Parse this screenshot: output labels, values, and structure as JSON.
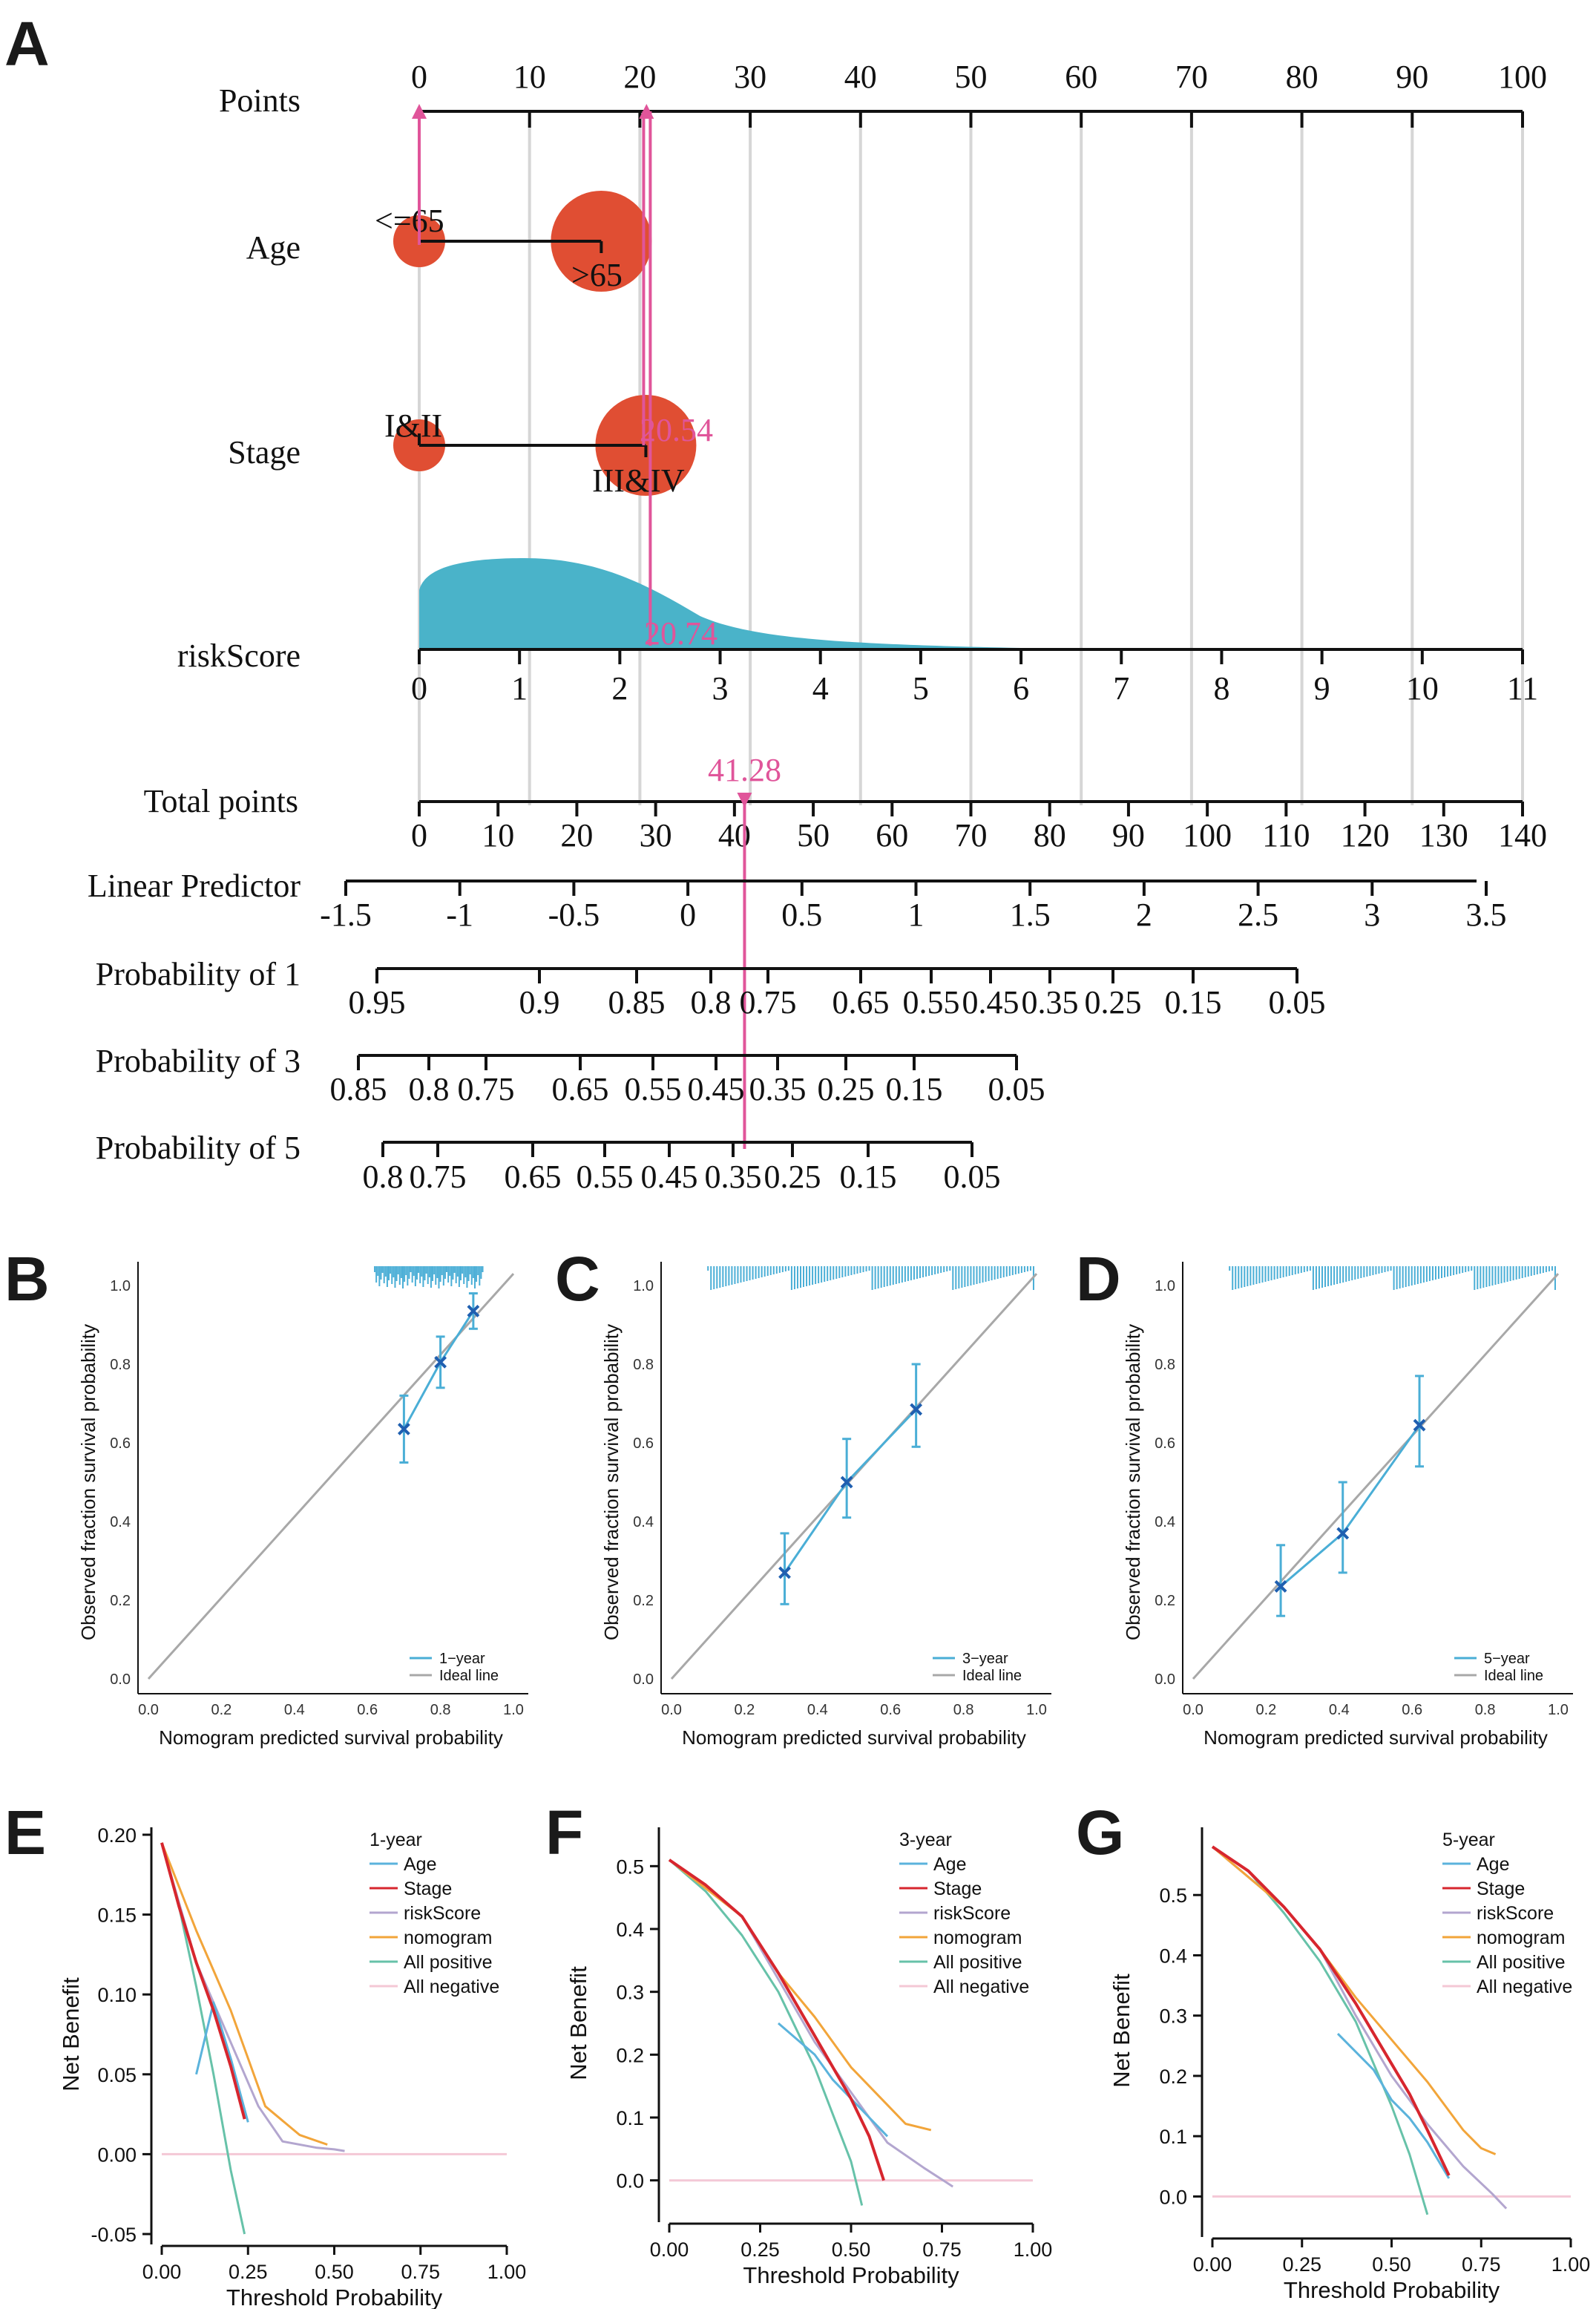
{
  "colors": {
    "accent": "#e0559a",
    "bubble": "#e04e33",
    "density": "#4ab3c9",
    "grid": "#d6d6d6",
    "calib": "#4aaed6",
    "calib_mark": "#1f5fb0",
    "ideal": "#a8a8a8",
    "age": "#5bb3dc",
    "stage": "#d7262e",
    "riskScore": "#b3a6cf",
    "nomogram": "#f2a53a",
    "all_positive": "#67c2a9",
    "all_negative": "#f4c8d6"
  },
  "panel_labels": [
    "A",
    "B",
    "C",
    "D",
    "E",
    "F",
    "G"
  ],
  "chart_data": [
    {
      "id": "A",
      "type": "nomogram",
      "rows": [
        {
          "label": "Points",
          "range": [
            0,
            100
          ],
          "ticks": [
            "0",
            "10",
            "20",
            "30",
            "40",
            "50",
            "60",
            "70",
            "80",
            "90",
            "100"
          ]
        },
        {
          "label": "Age",
          "categories": [
            "<=65",
            ">65"
          ],
          "points": [
            0,
            16.5
          ]
        },
        {
          "label": "Stage",
          "categories": [
            "I&II",
            "III&IV"
          ],
          "points": [
            0,
            20.54
          ],
          "annotation": "20.54"
        },
        {
          "label": "riskScore",
          "range": [
            0,
            11
          ],
          "ticks": [
            "0",
            "1",
            "2",
            "3",
            "4",
            "5",
            "6",
            "7",
            "8",
            "9",
            "10",
            "11"
          ],
          "annotation": "20.74",
          "marker_points": 20.74
        },
        {
          "label": "Total points",
          "range": [
            0,
            140
          ],
          "ticks": [
            "0",
            "10",
            "20",
            "30",
            "40",
            "50",
            "60",
            "70",
            "80",
            "90",
            "100",
            "110",
            "120",
            "130",
            "140"
          ],
          "annotation": "41.28",
          "marker": 41.28
        },
        {
          "label": "Linear Predictor",
          "ticks": [
            "-1.5",
            "-1",
            "-0.5",
            "0",
            "0.5",
            "1",
            "1.5",
            "2",
            "2.5",
            "3",
            "3.5"
          ]
        },
        {
          "label": "Probability of 1",
          "ticks": [
            "0.95",
            "0.9",
            "0.85",
            "0.8",
            "0.75",
            "0.65",
            "0.55",
            "0.45",
            "0.35",
            "0.25",
            "0.15",
            "0.05"
          ]
        },
        {
          "label": "Probability of 3",
          "ticks": [
            "0.85",
            "0.8",
            "0.75",
            "0.65",
            "0.55",
            "0.45",
            "0.35",
            "0.25",
            "0.15",
            "0.05"
          ]
        },
        {
          "label": "Probability of 5",
          "ticks": [
            "0.8",
            "0.75",
            "0.65",
            "0.55",
            "0.45",
            "0.35",
            "0.25",
            "0.15",
            "0.05"
          ]
        }
      ]
    },
    {
      "id": "B",
      "type": "scatter",
      "xlabel": "Nomogram predicted survival probability",
      "ylabel": "Observed fraction survival probability",
      "xlim": [
        0,
        1
      ],
      "ylim": [
        0,
        1
      ],
      "ticks": [
        "0.0",
        "0.2",
        "0.4",
        "0.6",
        "0.8",
        "1.0"
      ],
      "legend": [
        "1−year",
        "Ideal line"
      ],
      "points": [
        {
          "x": 0.7,
          "y": 0.635,
          "lo": 0.55,
          "hi": 0.72
        },
        {
          "x": 0.8,
          "y": 0.805,
          "lo": 0.74,
          "hi": 0.87
        },
        {
          "x": 0.89,
          "y": 0.935,
          "lo": 0.89,
          "hi": 0.98
        }
      ]
    },
    {
      "id": "C",
      "type": "scatter",
      "xlabel": "Nomogram predicted survival probability",
      "ylabel": "Observed fraction survival probability",
      "xlim": [
        0,
        1
      ],
      "ylim": [
        0,
        1
      ],
      "ticks": [
        "0.0",
        "0.2",
        "0.4",
        "0.6",
        "0.8",
        "1.0"
      ],
      "legend": [
        "3−year",
        "Ideal line"
      ],
      "points": [
        {
          "x": 0.31,
          "y": 0.27,
          "lo": 0.19,
          "hi": 0.37
        },
        {
          "x": 0.48,
          "y": 0.5,
          "lo": 0.41,
          "hi": 0.61
        },
        {
          "x": 0.67,
          "y": 0.685,
          "lo": 0.59,
          "hi": 0.8
        }
      ]
    },
    {
      "id": "D",
      "type": "scatter",
      "xlabel": "Nomogram predicted survival probability",
      "ylabel": "Observed fraction survival probability",
      "xlim": [
        0,
        1
      ],
      "ylim": [
        0,
        1
      ],
      "ticks": [
        "0.0",
        "0.2",
        "0.4",
        "0.6",
        "0.8",
        "1.0"
      ],
      "legend": [
        "5−year",
        "Ideal line"
      ],
      "points": [
        {
          "x": 0.24,
          "y": 0.235,
          "lo": 0.16,
          "hi": 0.34
        },
        {
          "x": 0.41,
          "y": 0.37,
          "lo": 0.27,
          "hi": 0.5
        },
        {
          "x": 0.62,
          "y": 0.645,
          "lo": 0.54,
          "hi": 0.77
        }
      ]
    },
    {
      "id": "E",
      "type": "line",
      "title": "1-year",
      "xlabel": "Threshold Probability",
      "ylabel": "Net Benefit",
      "xlim": [
        0,
        1
      ],
      "ylim": [
        -0.05,
        0.2
      ],
      "xticks": [
        "0.00",
        "0.25",
        "0.50",
        "0.75",
        "1.00"
      ],
      "yticks": [
        "-0.05",
        "0.00",
        "0.05",
        "0.10",
        "0.15",
        "0.20"
      ],
      "series": [
        {
          "name": "Age",
          "x": [
            0.1,
            0.15,
            0.2,
            0.25
          ],
          "y": [
            0.05,
            0.095,
            0.06,
            0.02
          ]
        },
        {
          "name": "Stage",
          "x": [
            0.0,
            0.05,
            0.1,
            0.15,
            0.2,
            0.24
          ],
          "y": [
            0.195,
            0.155,
            0.12,
            0.09,
            0.055,
            0.022
          ]
        },
        {
          "name": "riskScore",
          "x": [
            0.0,
            0.1,
            0.2,
            0.28,
            0.35,
            0.45,
            0.5,
            0.53
          ],
          "y": [
            0.195,
            0.12,
            0.07,
            0.03,
            0.008,
            0.004,
            0.003,
            0.002
          ]
        },
        {
          "name": "nomogram",
          "x": [
            0.0,
            0.1,
            0.15,
            0.2,
            0.25,
            0.3,
            0.4,
            0.48
          ],
          "y": [
            0.195,
            0.14,
            0.115,
            0.09,
            0.06,
            0.03,
            0.012,
            0.006
          ]
        },
        {
          "name": "All positive",
          "x": [
            0.0,
            0.05,
            0.1,
            0.15,
            0.2,
            0.24
          ],
          "y": [
            0.195,
            0.155,
            0.105,
            0.05,
            -0.01,
            -0.05
          ]
        },
        {
          "name": "All negative",
          "x": [
            0.0,
            1.0
          ],
          "y": [
            0,
            0
          ]
        }
      ]
    },
    {
      "id": "F",
      "type": "line",
      "title": "3-year",
      "xlabel": "Threshold Probability",
      "ylabel": "Net Benefit",
      "xlim": [
        0,
        1
      ],
      "ylim": [
        -0.05,
        0.55
      ],
      "xticks": [
        "0.00",
        "0.25",
        "0.50",
        "0.75",
        "1.00"
      ],
      "yticks": [
        "0.0",
        "0.1",
        "0.2",
        "0.3",
        "0.4",
        "0.5"
      ],
      "series": [
        {
          "name": "Age",
          "x": [
            0.3,
            0.4,
            0.45,
            0.5,
            0.55,
            0.6
          ],
          "y": [
            0.25,
            0.2,
            0.16,
            0.13,
            0.1,
            0.07
          ]
        },
        {
          "name": "Stage",
          "x": [
            0.0,
            0.1,
            0.2,
            0.3,
            0.4,
            0.5,
            0.55,
            0.59
          ],
          "y": [
            0.51,
            0.47,
            0.42,
            0.33,
            0.23,
            0.13,
            0.07,
            0.0
          ]
        },
        {
          "name": "riskScore",
          "x": [
            0.0,
            0.2,
            0.3,
            0.4,
            0.5,
            0.6,
            0.7,
            0.78
          ],
          "y": [
            0.51,
            0.42,
            0.32,
            0.22,
            0.14,
            0.06,
            0.02,
            -0.01
          ]
        },
        {
          "name": "nomogram",
          "x": [
            0.0,
            0.2,
            0.3,
            0.4,
            0.5,
            0.6,
            0.65,
            0.72
          ],
          "y": [
            0.51,
            0.42,
            0.33,
            0.26,
            0.18,
            0.12,
            0.09,
            0.08
          ]
        },
        {
          "name": "All positive",
          "x": [
            0.0,
            0.1,
            0.2,
            0.3,
            0.4,
            0.5,
            0.53
          ],
          "y": [
            0.51,
            0.46,
            0.39,
            0.3,
            0.18,
            0.03,
            -0.04
          ]
        },
        {
          "name": "All negative",
          "x": [
            0.0,
            1.0
          ],
          "y": [
            0,
            0
          ]
        }
      ]
    },
    {
      "id": "G",
      "type": "line",
      "title": "5-year",
      "xlabel": "Threshold Probability",
      "ylabel": "Net Benefit",
      "xlim": [
        0,
        1
      ],
      "ylim": [
        -0.05,
        0.6
      ],
      "xticks": [
        "0.00",
        "0.25",
        "0.50",
        "0.75",
        "1.00"
      ],
      "yticks": [
        "0.0",
        "0.1",
        "0.2",
        "0.3",
        "0.4",
        "0.5"
      ],
      "series": [
        {
          "name": "Age",
          "x": [
            0.35,
            0.45,
            0.5,
            0.55,
            0.6,
            0.66
          ],
          "y": [
            0.27,
            0.21,
            0.16,
            0.13,
            0.09,
            0.03
          ]
        },
        {
          "name": "Stage",
          "x": [
            0.0,
            0.1,
            0.2,
            0.3,
            0.4,
            0.5,
            0.55,
            0.6,
            0.66
          ],
          "y": [
            0.58,
            0.54,
            0.48,
            0.41,
            0.32,
            0.22,
            0.17,
            0.11,
            0.035
          ]
        },
        {
          "name": "riskScore",
          "x": [
            0.0,
            0.2,
            0.3,
            0.4,
            0.5,
            0.6,
            0.7,
            0.78,
            0.82
          ],
          "y": [
            0.58,
            0.48,
            0.41,
            0.3,
            0.2,
            0.12,
            0.05,
            0.005,
            -0.02
          ]
        },
        {
          "name": "nomogram",
          "x": [
            0.0,
            0.2,
            0.3,
            0.4,
            0.5,
            0.6,
            0.7,
            0.75,
            0.79
          ],
          "y": [
            0.58,
            0.48,
            0.41,
            0.33,
            0.26,
            0.19,
            0.11,
            0.08,
            0.07
          ]
        },
        {
          "name": "All positive",
          "x": [
            0.0,
            0.1,
            0.2,
            0.3,
            0.4,
            0.5,
            0.55,
            0.6
          ],
          "y": [
            0.58,
            0.54,
            0.47,
            0.39,
            0.29,
            0.15,
            0.07,
            -0.03
          ]
        },
        {
          "name": "All negative",
          "x": [
            0.0,
            1.0
          ],
          "y": [
            0,
            0
          ]
        }
      ]
    }
  ]
}
